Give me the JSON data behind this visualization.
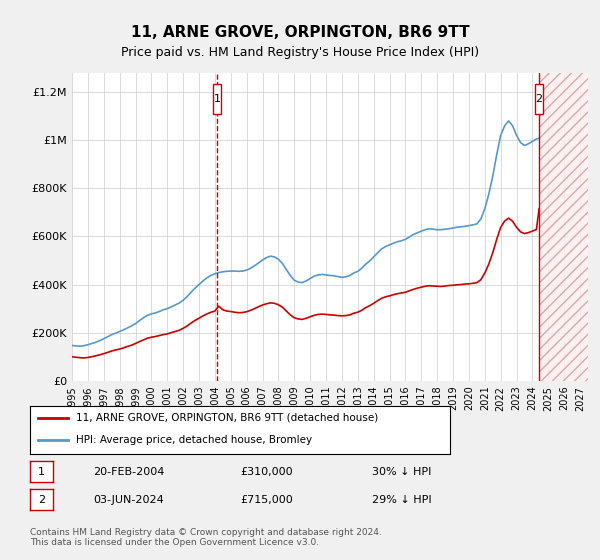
{
  "title": "11, ARNE GROVE, ORPINGTON, BR6 9TT",
  "subtitle": "Price paid vs. HM Land Registry's House Price Index (HPI)",
  "xlim": [
    1995.0,
    2027.5
  ],
  "ylim": [
    0,
    1280000
  ],
  "yticks": [
    0,
    200000,
    400000,
    600000,
    800000,
    1000000,
    1200000
  ],
  "ytick_labels": [
    "£0",
    "£200K",
    "£400K",
    "£600K",
    "£800K",
    "£1M",
    "£1.2M"
  ],
  "xticks": [
    1995,
    1996,
    1997,
    1998,
    1999,
    2000,
    2001,
    2002,
    2003,
    2004,
    2005,
    2006,
    2007,
    2008,
    2009,
    2010,
    2011,
    2012,
    2013,
    2014,
    2015,
    2016,
    2017,
    2018,
    2019,
    2020,
    2021,
    2022,
    2023,
    2024,
    2025,
    2026,
    2027
  ],
  "background_color": "#f0f0f0",
  "plot_bg_color": "#ffffff",
  "grid_color": "#cccccc",
  "red_line_color": "#cc0000",
  "blue_line_color": "#5599cc",
  "marker1_x": 2004.13,
  "marker1_y": 310000,
  "marker2_x": 2024.42,
  "marker2_y": 715000,
  "marker1_label": "1",
  "marker2_label": "2",
  "legend_line1": "11, ARNE GROVE, ORPINGTON, BR6 9TT (detached house)",
  "legend_line2": "HPI: Average price, detached house, Bromley",
  "table_row1": [
    "1",
    "20-FEB-2004",
    "£310,000",
    "30% ↓ HPI"
  ],
  "table_row2": [
    "2",
    "03-JUN-2024",
    "£715,000",
    "29% ↓ HPI"
  ],
  "footer": "Contains HM Land Registry data © Crown copyright and database right 2024.\nThis data is licensed under the Open Government Licence v3.0.",
  "hpi_data_x": [
    1995.0,
    1995.25,
    1995.5,
    1995.75,
    1996.0,
    1996.25,
    1996.5,
    1996.75,
    1997.0,
    1997.25,
    1997.5,
    1997.75,
    1998.0,
    1998.25,
    1998.5,
    1998.75,
    1999.0,
    1999.25,
    1999.5,
    1999.75,
    2000.0,
    2000.25,
    2000.5,
    2000.75,
    2001.0,
    2001.25,
    2001.5,
    2001.75,
    2002.0,
    2002.25,
    2002.5,
    2002.75,
    2003.0,
    2003.25,
    2003.5,
    2003.75,
    2004.0,
    2004.25,
    2004.5,
    2004.75,
    2005.0,
    2005.25,
    2005.5,
    2005.75,
    2006.0,
    2006.25,
    2006.5,
    2006.75,
    2007.0,
    2007.25,
    2007.5,
    2007.75,
    2008.0,
    2008.25,
    2008.5,
    2008.75,
    2009.0,
    2009.25,
    2009.5,
    2009.75,
    2010.0,
    2010.25,
    2010.5,
    2010.75,
    2011.0,
    2011.25,
    2011.5,
    2011.75,
    2012.0,
    2012.25,
    2012.5,
    2012.75,
    2013.0,
    2013.25,
    2013.5,
    2013.75,
    2014.0,
    2014.25,
    2014.5,
    2014.75,
    2015.0,
    2015.25,
    2015.5,
    2015.75,
    2016.0,
    2016.25,
    2016.5,
    2016.75,
    2017.0,
    2017.25,
    2017.5,
    2017.75,
    2018.0,
    2018.25,
    2018.5,
    2018.75,
    2019.0,
    2019.25,
    2019.5,
    2019.75,
    2020.0,
    2020.25,
    2020.5,
    2020.75,
    2021.0,
    2021.25,
    2021.5,
    2021.75,
    2022.0,
    2022.25,
    2022.5,
    2022.75,
    2023.0,
    2023.25,
    2023.5,
    2023.75,
    2024.0,
    2024.25,
    2024.42
  ],
  "hpi_data_y": [
    147000,
    145000,
    144000,
    146000,
    150000,
    155000,
    160000,
    167000,
    175000,
    183000,
    192000,
    198000,
    205000,
    212000,
    220000,
    228000,
    238000,
    250000,
    262000,
    272000,
    278000,
    282000,
    288000,
    295000,
    300000,
    307000,
    315000,
    323000,
    335000,
    350000,
    368000,
    385000,
    400000,
    415000,
    428000,
    438000,
    445000,
    450000,
    453000,
    455000,
    456000,
    456000,
    455000,
    456000,
    460000,
    468000,
    478000,
    490000,
    502000,
    512000,
    518000,
    515000,
    505000,
    488000,
    462000,
    438000,
    418000,
    410000,
    408000,
    415000,
    425000,
    435000,
    440000,
    442000,
    440000,
    438000,
    436000,
    433000,
    430000,
    432000,
    438000,
    448000,
    455000,
    468000,
    485000,
    498000,
    515000,
    532000,
    548000,
    558000,
    565000,
    572000,
    578000,
    582000,
    588000,
    598000,
    608000,
    615000,
    622000,
    628000,
    632000,
    630000,
    628000,
    628000,
    630000,
    632000,
    635000,
    638000,
    640000,
    642000,
    645000,
    648000,
    652000,
    672000,
    715000,
    775000,
    850000,
    940000,
    1020000,
    1060000,
    1080000,
    1060000,
    1020000,
    990000,
    978000,
    985000,
    995000,
    1005000,
    1008000
  ],
  "red_data_x": [
    1995.0,
    1995.25,
    1995.5,
    1995.75,
    1996.0,
    1996.25,
    1996.5,
    1996.75,
    1997.0,
    1997.25,
    1997.5,
    1997.75,
    1998.0,
    1998.25,
    1998.5,
    1998.75,
    1999.0,
    1999.25,
    1999.5,
    1999.75,
    2000.0,
    2000.25,
    2000.5,
    2000.75,
    2001.0,
    2001.25,
    2001.5,
    2001.75,
    2002.0,
    2002.25,
    2002.5,
    2002.75,
    2003.0,
    2003.25,
    2003.5,
    2003.75,
    2004.0,
    2004.25,
    2004.5,
    2004.75,
    2005.0,
    2005.25,
    2005.5,
    2005.75,
    2006.0,
    2006.25,
    2006.5,
    2006.75,
    2007.0,
    2007.25,
    2007.5,
    2007.75,
    2008.0,
    2008.25,
    2008.5,
    2008.75,
    2009.0,
    2009.25,
    2009.5,
    2009.75,
    2010.0,
    2010.25,
    2010.5,
    2010.75,
    2011.0,
    2011.25,
    2011.5,
    2011.75,
    2012.0,
    2012.25,
    2012.5,
    2012.75,
    2013.0,
    2013.25,
    2013.5,
    2013.75,
    2014.0,
    2014.25,
    2014.5,
    2014.75,
    2015.0,
    2015.25,
    2015.5,
    2015.75,
    2016.0,
    2016.25,
    2016.5,
    2016.75,
    2017.0,
    2017.25,
    2017.5,
    2017.75,
    2018.0,
    2018.25,
    2018.5,
    2018.75,
    2019.0,
    2019.25,
    2019.5,
    2019.75,
    2020.0,
    2020.25,
    2020.5,
    2020.75,
    2021.0,
    2021.25,
    2021.5,
    2021.75,
    2022.0,
    2022.25,
    2022.5,
    2022.75,
    2023.0,
    2023.25,
    2023.5,
    2023.75,
    2024.0,
    2024.25,
    2024.42
  ],
  "red_data_y": [
    100000,
    98000,
    96000,
    95000,
    97000,
    100000,
    104000,
    108000,
    113000,
    118000,
    124000,
    128000,
    132000,
    137000,
    143000,
    148000,
    155000,
    163000,
    170000,
    177000,
    181000,
    184000,
    188000,
    192000,
    195000,
    200000,
    205000,
    210000,
    218000,
    228000,
    240000,
    251000,
    260000,
    270000,
    278000,
    285000,
    290000,
    310000,
    295000,
    290000,
    288000,
    285000,
    283000,
    284000,
    287000,
    293000,
    300000,
    308000,
    315000,
    320000,
    324000,
    322000,
    316000,
    306000,
    290000,
    274000,
    262000,
    257000,
    255000,
    260000,
    266000,
    272000,
    276000,
    277000,
    276000,
    274000,
    273000,
    271000,
    270000,
    271000,
    274000,
    281000,
    285000,
    293000,
    304000,
    312000,
    322000,
    333000,
    343000,
    349000,
    353000,
    358000,
    362000,
    365000,
    368000,
    374000,
    380000,
    385000,
    389000,
    393000,
    395000,
    394000,
    393000,
    392000,
    394000,
    396000,
    397000,
    399000,
    400000,
    402000,
    403000,
    405000,
    408000,
    420000,
    448000,
    485000,
    532000,
    588000,
    638000,
    664000,
    676000,
    663000,
    638000,
    619000,
    612000,
    616000,
    622000,
    629000,
    715000
  ]
}
